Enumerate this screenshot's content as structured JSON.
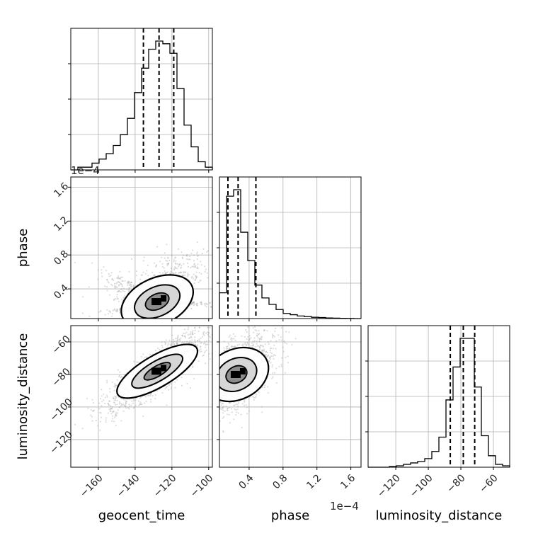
{
  "chart_data": {
    "type": "corner",
    "parameters": [
      "geocent_time",
      "phase",
      "luminosity_distance"
    ],
    "offset_label": "1e−4",
    "grid": true,
    "colors": {
      "hist": "#000000",
      "scatter": "#9e9e9e",
      "grid": "#b0b0b0"
    },
    "axes": {
      "geocent_time": {
        "range": [
          -175,
          -98
        ],
        "ticks": [
          -160,
          -140,
          -120,
          -100
        ],
        "tick_labels": [
          "−160",
          "−140",
          "−120",
          "−100"
        ]
      },
      "phase": {
        "range": [
          0.05,
          1.72
        ],
        "ticks": [
          0.4,
          0.8,
          1.2,
          1.6
        ],
        "tick_labels": [
          "0.4",
          "0.8",
          "1.2",
          "1.6"
        ],
        "units_scale": "1e-4"
      },
      "luminosity_distance": {
        "range": [
          -137,
          -50
        ],
        "ticks": [
          -120,
          -100,
          -80,
          -60
        ],
        "tick_labels": [
          "−120",
          "−100",
          "−80",
          "−60"
        ]
      }
    },
    "histograms": {
      "geocent_time": {
        "edges": [
          -175,
          -171.15,
          -167.3,
          -163.45,
          -159.6,
          -155.75,
          -151.9,
          -148.05,
          -144.2,
          -140.35,
          -136.5,
          -132.65,
          -128.8,
          -124.95,
          -121.1,
          -117.25,
          -113.4,
          -109.55,
          -105.7,
          -101.85,
          -98
        ],
        "counts": [
          0,
          0.02,
          0.02,
          0.05,
          0.08,
          0.12,
          0.18,
          0.26,
          0.38,
          0.57,
          0.75,
          0.89,
          0.95,
          0.93,
          0.86,
          0.6,
          0.33,
          0.17,
          0.06,
          0.02
        ],
        "quantiles": [
          -135.5,
          -127,
          -119
        ]
      },
      "phase": {
        "edges": [
          0.05,
          0.1335,
          0.217,
          0.3005,
          0.384,
          0.4675,
          0.551,
          0.6345,
          0.718,
          0.8015,
          0.885,
          0.9685,
          1.052,
          1.1355,
          1.219,
          1.3025,
          1.386,
          1.4695,
          1.553,
          1.6365,
          1.72
        ],
        "counts": [
          0.2,
          0.95,
          1.0,
          0.67,
          0.45,
          0.26,
          0.16,
          0.11,
          0.07,
          0.04,
          0.03,
          0.02,
          0.015,
          0.01,
          0.008,
          0.005,
          0.003,
          0.002,
          0.001,
          0.0
        ],
        "quantiles": [
          0.15,
          0.27,
          0.48
        ]
      },
      "luminosity_distance": {
        "edges": [
          -137,
          -132.65,
          -128.3,
          -123.95,
          -119.6,
          -115.25,
          -110.9,
          -106.55,
          -102.2,
          -97.85,
          -93.5,
          -89.15,
          -84.8,
          -80.45,
          -76.1,
          -71.75,
          -67.4,
          -63.05,
          -58.7,
          -54.35,
          -50
        ],
        "counts": [
          0,
          0,
          0,
          0.005,
          0.01,
          0.02,
          0.03,
          0.04,
          0.06,
          0.11,
          0.21,
          0.47,
          0.7,
          0.9,
          0.9,
          0.56,
          0.22,
          0.08,
          0.02,
          0.01
        ],
        "quantiles": [
          -86.5,
          -78.5,
          -71.5
        ]
      }
    },
    "pairs": [
      {
        "x": "geocent_time",
        "y": "phase",
        "peak": [
          -128,
          0.25
        ],
        "spread": [
          8,
          0.15
        ],
        "corr": 0.6
      },
      {
        "x": "geocent_time",
        "y": "luminosity_distance",
        "peak": [
          -128,
          -78
        ],
        "spread": [
          9,
          8
        ],
        "corr": 0.85
      },
      {
        "x": "phase",
        "y": "luminosity_distance",
        "peak": [
          0.25,
          -80
        ],
        "spread": [
          0.15,
          8
        ],
        "corr": 0.55
      }
    ]
  }
}
